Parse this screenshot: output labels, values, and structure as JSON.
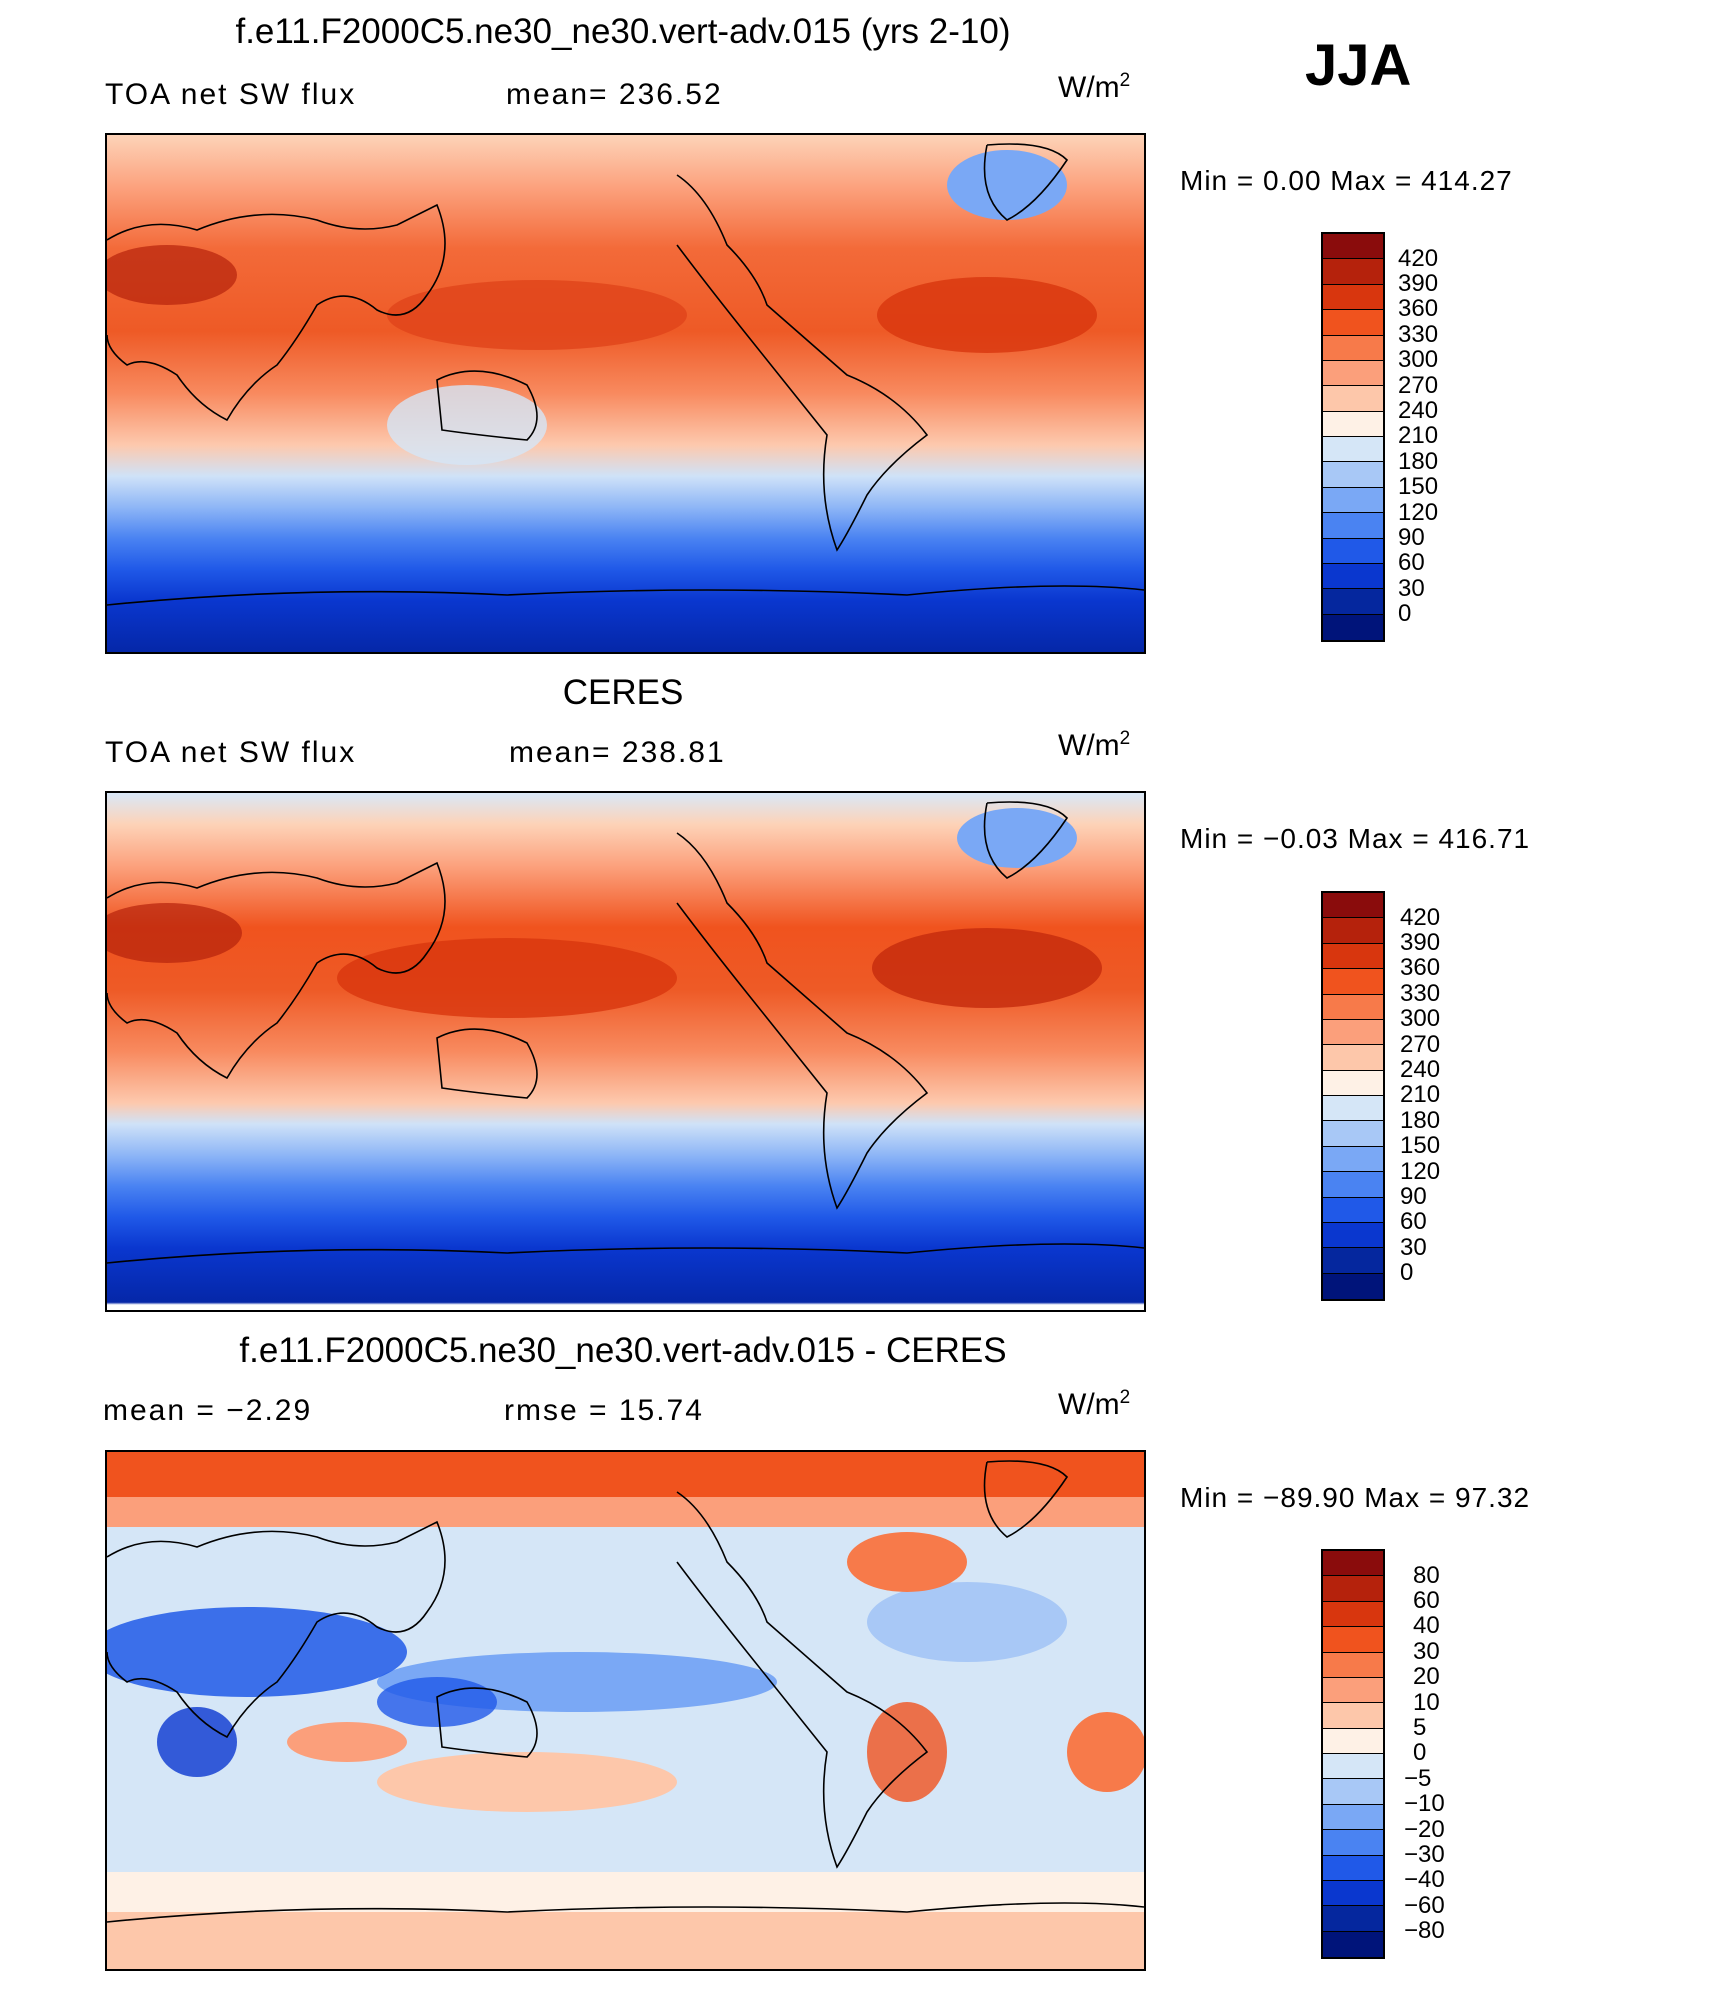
{
  "season": "JJA",
  "panels": [
    {
      "id": "model",
      "title": "f.e11.F2000C5.ne30_ne30.vert-adv.015 (yrs 2-10)",
      "left_label": "TOA net SW flux",
      "right_label": "mean= 236.52",
      "units": "W/m",
      "units_sup": "2",
      "minmax": "Min =    0.00 Max = 414.27",
      "colorbar": {
        "labels": [
          "420",
          "390",
          "360",
          "330",
          "300",
          "270",
          "240",
          "210",
          "180",
          "150",
          "120",
          "90",
          "60",
          "30",
          "0"
        ],
        "colors": [
          "#8a0c0c",
          "#b5220c",
          "#d8360e",
          "#f0531e",
          "#f77a4a",
          "#fb9f7b",
          "#fdc7aa",
          "#fef1e6",
          "#d5e6f7",
          "#a8c8f6",
          "#7aa8f5",
          "#4a83f2",
          "#2059e8",
          "#0a37cf",
          "#05279e",
          "#00147a"
        ]
      }
    },
    {
      "id": "obs",
      "title": "CERES",
      "left_label": "TOA net SW flux",
      "right_label": "mean= 238.81",
      "units": "W/m",
      "units_sup": "2",
      "minmax": "Min =  −0.03 Max = 416.71",
      "colorbar": {
        "labels": [
          "420",
          "390",
          "360",
          "330",
          "300",
          "270",
          "240",
          "210",
          "180",
          "150",
          "120",
          "90",
          "60",
          "30",
          "0"
        ],
        "colors": [
          "#8a0c0c",
          "#b5220c",
          "#d8360e",
          "#f0531e",
          "#f77a4a",
          "#fb9f7b",
          "#fdc7aa",
          "#fef1e6",
          "#d5e6f7",
          "#a8c8f6",
          "#7aa8f5",
          "#4a83f2",
          "#2059e8",
          "#0a37cf",
          "#05279e",
          "#00147a"
        ]
      }
    },
    {
      "id": "diff",
      "title": "f.e11.F2000C5.ne30_ne30.vert-adv.015 - CERES",
      "left_label": "mean =   −2.29",
      "right_label": "rmse =   15.74",
      "units": "W/m",
      "units_sup": "2",
      "minmax": "Min = −89.90 Max =   97.32",
      "colorbar": {
        "labels": [
          "80",
          "60",
          "40",
          "30",
          "20",
          "10",
          "5",
          "0",
          "−5",
          "−10",
          "−20",
          "−30",
          "−40",
          "−60",
          "−80"
        ],
        "colors": [
          "#8a0c0c",
          "#b5220c",
          "#d8360e",
          "#f0531e",
          "#f77a4a",
          "#fb9f7b",
          "#fdc7aa",
          "#fef1e6",
          "#d5e6f7",
          "#a8c8f6",
          "#7aa8f5",
          "#4a83f2",
          "#2059e8",
          "#0a37cf",
          "#05279e",
          "#00147a"
        ]
      }
    }
  ]
}
